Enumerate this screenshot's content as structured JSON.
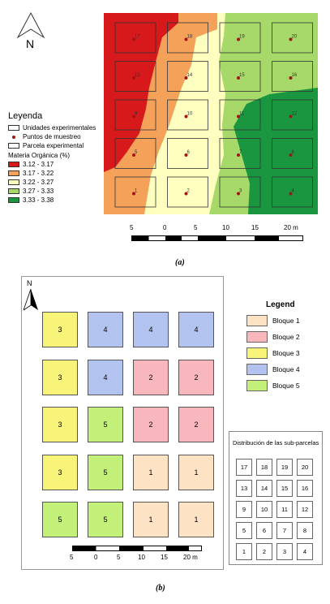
{
  "panel_a": {
    "north_label": "N",
    "legend": {
      "title": "Leyenda",
      "items": [
        {
          "label": "Unidades experimentales",
          "kind": "rect"
        },
        {
          "label": "Puntos de muestreo",
          "kind": "dot"
        },
        {
          "label": "Parcela experimental",
          "kind": "rect"
        }
      ],
      "ramp_title": "Materia Orgánica (%)",
      "classes": [
        {
          "label": "3.12 - 3.17",
          "color": "#d7191c"
        },
        {
          "label": "3.17 - 3.22",
          "color": "#f4a259"
        },
        {
          "label": "3.22 - 3.27",
          "color": "#ffffc0"
        },
        {
          "label": "3.27 - 3.33",
          "color": "#a6d96a"
        },
        {
          "label": "3.33 - 3.38",
          "color": "#1a9641"
        }
      ]
    },
    "plot_numbers": [
      [
        "17",
        "18",
        "19",
        "20"
      ],
      [
        "13",
        "14",
        "15",
        "16"
      ],
      [
        "9",
        "10",
        "11",
        "12"
      ],
      [
        "5",
        "6",
        "7",
        "8"
      ],
      [
        "1",
        "2",
        "3",
        "4"
      ]
    ],
    "scale_labels": [
      "5",
      "0",
      "5",
      "10",
      "15",
      "20 m"
    ],
    "caption": "(a)"
  },
  "panel_b": {
    "north_label": "N",
    "blocks": [
      [
        "3",
        "4",
        "4",
        "4"
      ],
      [
        "3",
        "4",
        "2",
        "2"
      ],
      [
        "3",
        "5",
        "2",
        "2"
      ],
      [
        "3",
        "5",
        "1",
        "1"
      ],
      [
        "5",
        "5",
        "1",
        "1"
      ]
    ],
    "block_colors": {
      "1": "#fde3c4",
      "2": "#f7b7bd",
      "3": "#f8f47a",
      "4": "#b3c3ef",
      "5": "#c2f079"
    },
    "legend": {
      "title": "Legend",
      "items": [
        {
          "label": "Bloque 1",
          "key": "1"
        },
        {
          "label": "Bloque 2",
          "key": "2"
        },
        {
          "label": "Bloque 3",
          "key": "3"
        },
        {
          "label": "Bloque 4",
          "key": "4"
        },
        {
          "label": "Bloque 5",
          "key": "5"
        }
      ]
    },
    "distribution": {
      "title": "Distribución de las sub-parcelas",
      "rows": [
        [
          "17",
          "18",
          "19",
          "20"
        ],
        [
          "13",
          "14",
          "15",
          "16"
        ],
        [
          "9",
          "10",
          "11",
          "12"
        ],
        [
          "5",
          "6",
          "7",
          "8"
        ],
        [
          "1",
          "2",
          "3",
          "4"
        ]
      ]
    },
    "scale_labels": [
      "5",
      "0",
      "5",
      "10",
      "15",
      "20 m"
    ],
    "caption": "(b)"
  }
}
